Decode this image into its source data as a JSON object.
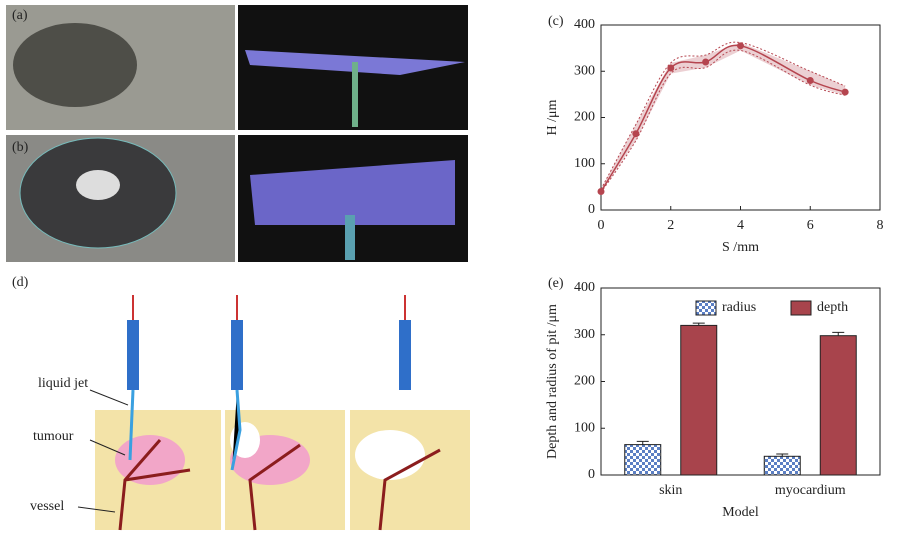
{
  "panel_labels": [
    "(a)",
    "(b)",
    "(c)",
    "(d)",
    "(e)"
  ],
  "diagram_labels": [
    "liquid jet",
    "tumour",
    "vessel"
  ],
  "chart_data": [
    {
      "type": "line",
      "x_label": "S /mm",
      "y_label": "H /μm",
      "xlim": [
        0,
        8
      ],
      "xticks": [
        0,
        2,
        4,
        6,
        8
      ],
      "ylim": [
        0,
        400
      ],
      "yticks": [
        0,
        100,
        200,
        300,
        400
      ],
      "x": [
        0,
        1,
        2,
        3,
        4,
        6,
        7
      ],
      "series": [
        {
          "color": "#b5454f",
          "values": [
            40,
            165,
            307,
            320,
            355,
            280,
            255
          ],
          "upper": [
            45,
            185,
            318,
            335,
            362,
            300,
            268
          ],
          "lower": [
            38,
            150,
            295,
            308,
            345,
            270,
            248
          ]
        }
      ]
    },
    {
      "type": "bar",
      "x_label": "Model",
      "y_label": "Depth and radius of pit /μm",
      "categories": [
        "skin",
        "myocardium"
      ],
      "ylim": [
        0,
        400
      ],
      "yticks": [
        0,
        100,
        200,
        300,
        400
      ],
      "series": [
        {
          "name": "radius",
          "color": "#5b7fc4",
          "values": [
            65,
            40
          ],
          "errors": [
            7,
            5
          ]
        },
        {
          "name": "depth",
          "color": "#a8444c",
          "values": [
            320,
            298
          ],
          "errors": [
            5,
            7
          ]
        }
      ]
    }
  ]
}
